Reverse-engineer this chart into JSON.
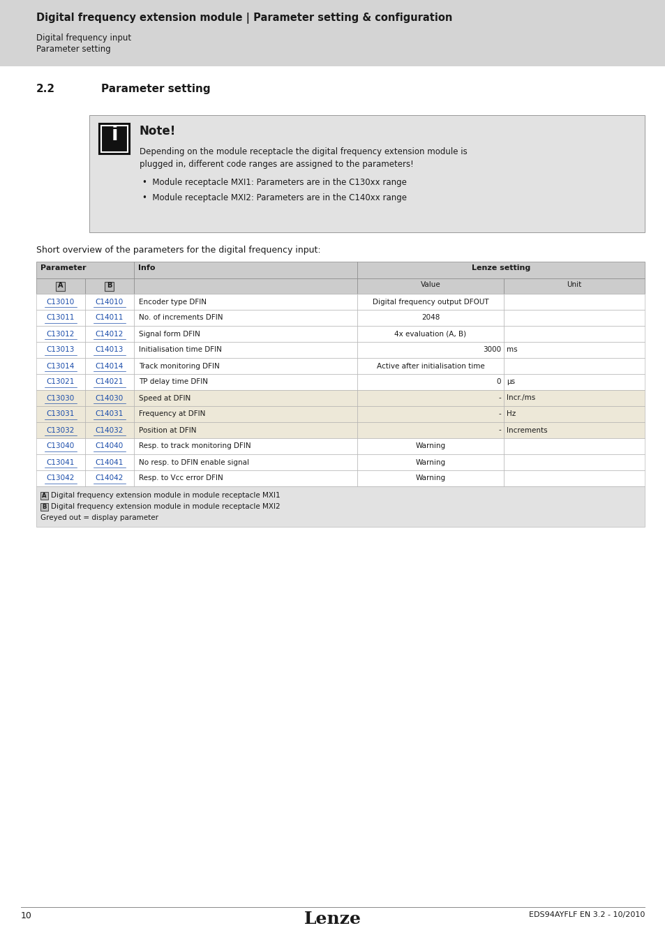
{
  "header_bg": "#d4d4d4",
  "header_title": "Digital frequency extension module | Parameter setting & configuration",
  "header_sub1": "Digital frequency input",
  "header_sub2": "Parameter setting",
  "section_num": "2.2",
  "section_title": "Parameter setting",
  "note_title": "Note!",
  "note_body_line1": "Depending on the module receptacle the digital frequency extension module is",
  "note_body_line2": "plugged in, different code ranges are assigned to the parameters!",
  "note_bullets": [
    "Module receptacle MXI1: Parameters are in the C130xx range",
    "Module receptacle MXI2: Parameters are in the C140xx range"
  ],
  "table_intro": "Short overview of the parameters for the digital frequency input:",
  "table_header_param": "Parameter",
  "table_header_info": "Info",
  "table_header_lenze": "Lenze setting",
  "table_sub_a": "A",
  "table_sub_b": "B",
  "table_sub_value": "Value",
  "table_sub_unit": "Unit",
  "table_rows": [
    {
      "a": "C13010",
      "b": "C14010",
      "info": "Encoder type DFIN",
      "value": "Digital frequency output DFOUT",
      "unit": "",
      "grey": false
    },
    {
      "a": "C13011",
      "b": "C14011",
      "info": "No. of increments DFIN",
      "value": "2048",
      "unit": "",
      "grey": false
    },
    {
      "a": "C13012",
      "b": "C14012",
      "info": "Signal form DFIN",
      "value": "4x evaluation (A, B)",
      "unit": "",
      "grey": false
    },
    {
      "a": "C13013",
      "b": "C14013",
      "info": "Initialisation time DFIN",
      "value": "3000",
      "unit": "ms",
      "grey": false
    },
    {
      "a": "C13014",
      "b": "C14014",
      "info": "Track monitoring DFIN",
      "value": "Active after initialisation time",
      "unit": "",
      "grey": false
    },
    {
      "a": "C13021",
      "b": "C14021",
      "info": "TP delay time DFIN",
      "value": "0",
      "unit": "μs",
      "grey": false
    },
    {
      "a": "C13030",
      "b": "C14030",
      "info": "Speed at DFIN",
      "value": "-",
      "unit": "Incr./ms",
      "grey": true
    },
    {
      "a": "C13031",
      "b": "C14031",
      "info": "Frequency at DFIN",
      "value": "-",
      "unit": "Hz",
      "grey": true
    },
    {
      "a": "C13032",
      "b": "C14032",
      "info": "Position at DFIN",
      "value": "-",
      "unit": "Increments",
      "grey": true
    },
    {
      "a": "C13040",
      "b": "C14040",
      "info": "Resp. to track monitoring DFIN",
      "value": "Warning",
      "unit": "",
      "grey": false
    },
    {
      "a": "C13041",
      "b": "C14041",
      "info": "No resp. to DFIN enable signal",
      "value": "Warning",
      "unit": "",
      "grey": false
    },
    {
      "a": "C13042",
      "b": "C14042",
      "info": "Resp. to Vcc error DFIN",
      "value": "Warning",
      "unit": "",
      "grey": false
    }
  ],
  "footnote1": "Digital frequency extension module in module receptacle MXI1",
  "footnote2": "Digital frequency extension module in module receptacle MXI2",
  "footnote3": "Greyed out = display parameter",
  "footer_page": "10",
  "footer_logo": "Lenze",
  "footer_ref": "EDS94AYFLF EN 3.2 - 10/2010",
  "link_color": "#1a4caa",
  "note_bg": "#e2e2e2",
  "grey_row_bg": "#ede8d8",
  "white_row_bg": "#ffffff",
  "header_row_bg": "#cccccc",
  "fn_bg": "#e2e2e2"
}
